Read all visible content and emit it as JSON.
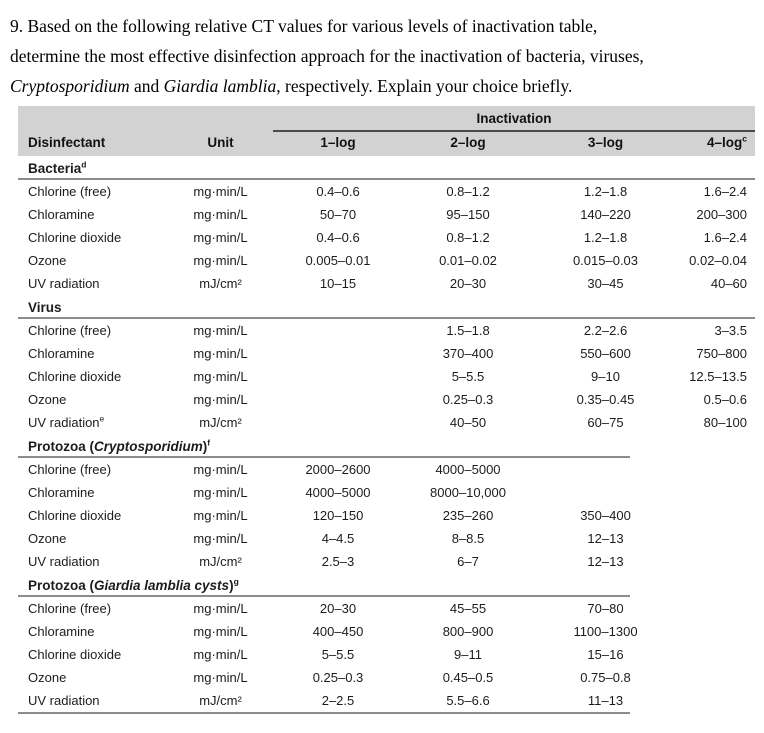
{
  "colors": {
    "header_bg": "#d2d2d2",
    "rule_color": "#8c8c8c",
    "group_rule_color": "#4a4a4a",
    "text_color": "#1c1c1c"
  },
  "question": {
    "segments": [
      {
        "text": "9. Based on the following relative CT values for various levels of inactivation table,",
        "italic": false,
        "br": true
      },
      {
        "text": "determine the most effective disinfection approach for the inactivation of bacteria, viruses,",
        "italic": false,
        "br": true
      },
      {
        "text": "Cryptosporidium",
        "italic": true,
        "br": false
      },
      {
        "text": " and ",
        "italic": false,
        "br": false
      },
      {
        "text": "Giardia lamblia",
        "italic": true,
        "br": false
      },
      {
        "text": ", respectively. Explain your choice briefly.",
        "italic": false,
        "br": false
      }
    ]
  },
  "table": {
    "header": {
      "disinfectant": "Disinfectant",
      "unit": "Unit",
      "group": "Inactivation",
      "logs": [
        {
          "label": "1–log",
          "sup": ""
        },
        {
          "label": "2–log",
          "sup": ""
        },
        {
          "label": "3–log",
          "sup": ""
        },
        {
          "label": "4–log",
          "sup": "c"
        }
      ]
    },
    "sections": [
      {
        "title": [
          {
            "text": "Bacteria",
            "italic": false
          }
        ],
        "sup": "d",
        "rule": "full",
        "rows": [
          {
            "name": "Chlorine (free)",
            "sup": "",
            "unit": "mg·min/L",
            "values": [
              "0.4–0.6",
              "0.8–1.2",
              "1.2–1.8",
              "1.6–2.4"
            ]
          },
          {
            "name": "Chloramine",
            "sup": "",
            "unit": "mg·min/L",
            "values": [
              "50–70",
              "95–150",
              "140–220",
              "200–300"
            ]
          },
          {
            "name": "Chlorine dioxide",
            "sup": "",
            "unit": "mg·min/L",
            "values": [
              "0.4–0.6",
              "0.8–1.2",
              "1.2–1.8",
              "1.6–2.4"
            ]
          },
          {
            "name": "Ozone",
            "sup": "",
            "unit": "mg·min/L",
            "values": [
              "0.005–0.01",
              "0.01–0.02",
              "0.015–0.03",
              "0.02–0.04"
            ]
          },
          {
            "name": "UV radiation",
            "sup": "",
            "unit": "mJ/cm²",
            "values": [
              "10–15",
              "20–30",
              "30–45",
              "40–60"
            ]
          }
        ]
      },
      {
        "title": [
          {
            "text": "Virus",
            "italic": false
          }
        ],
        "sup": "",
        "rule": "full",
        "rows": [
          {
            "name": "Chlorine (free)",
            "sup": "",
            "unit": "mg·min/L",
            "values": [
              "",
              "1.5–1.8",
              "2.2–2.6",
              "3–3.5"
            ]
          },
          {
            "name": "Chloramine",
            "sup": "",
            "unit": "mg·min/L",
            "values": [
              "",
              "370–400",
              "550–600",
              "750–800"
            ]
          },
          {
            "name": "Chlorine dioxide",
            "sup": "",
            "unit": "mg·min/L",
            "values": [
              "",
              "5–5.5",
              "9–10",
              "12.5–13.5"
            ]
          },
          {
            "name": "Ozone",
            "sup": "",
            "unit": "mg·min/L",
            "values": [
              "",
              "0.25–0.3",
              "0.35–0.45",
              "0.5–0.6"
            ]
          },
          {
            "name": "UV radiation",
            "sup": "e",
            "unit": "mJ/cm²",
            "values": [
              "",
              "40–50",
              "60–75",
              "80–100"
            ]
          }
        ]
      },
      {
        "title": [
          {
            "text": "Protozoa (",
            "italic": false
          },
          {
            "text": "Cryptosporidium",
            "italic": true
          },
          {
            "text": ")",
            "italic": false
          }
        ],
        "sup": "f",
        "rule": "partial",
        "rows": [
          {
            "name": "Chlorine (free)",
            "sup": "",
            "unit": "mg·min/L",
            "values": [
              "2000–2600",
              "4000–5000",
              "",
              ""
            ]
          },
          {
            "name": "Chloramine",
            "sup": "",
            "unit": "mg·min/L",
            "values": [
              "4000–5000",
              "8000–10,000",
              "",
              ""
            ]
          },
          {
            "name": "Chlorine dioxide",
            "sup": "",
            "unit": "mg·min/L",
            "values": [
              "120–150",
              "235–260",
              "350–400",
              ""
            ]
          },
          {
            "name": "Ozone",
            "sup": "",
            "unit": "mg·min/L",
            "values": [
              "4–4.5",
              "8–8.5",
              "12–13",
              ""
            ]
          },
          {
            "name": "UV radiation",
            "sup": "",
            "unit": "mJ/cm²",
            "values": [
              "2.5–3",
              "6–7",
              "12–13",
              ""
            ]
          }
        ]
      },
      {
        "title": [
          {
            "text": "Protozoa (",
            "italic": false
          },
          {
            "text": "Giardia lamblia cysts",
            "italic": true
          },
          {
            "text": ")",
            "italic": false
          }
        ],
        "sup": "g",
        "rule": "partial",
        "rows": [
          {
            "name": "Chlorine (free)",
            "sup": "",
            "unit": "mg·min/L",
            "values": [
              "20–30",
              "45–55",
              "70–80",
              ""
            ]
          },
          {
            "name": "Chloramine",
            "sup": "",
            "unit": "mg·min/L",
            "values": [
              "400–450",
              "800–900",
              "1100–1300",
              ""
            ]
          },
          {
            "name": "Chlorine dioxide",
            "sup": "",
            "unit": "mg·min/L",
            "values": [
              "5–5.5",
              "9–11",
              "15–16",
              ""
            ]
          },
          {
            "name": "Ozone",
            "sup": "",
            "unit": "mg·min/L",
            "values": [
              "0.25–0.3",
              "0.45–0.5",
              "0.75–0.8",
              ""
            ]
          },
          {
            "name": "UV radiation",
            "sup": "",
            "unit": "mJ/cm²",
            "values": [
              "2–2.5",
              "5.5–6.6",
              "11–13",
              ""
            ]
          }
        ]
      }
    ]
  }
}
